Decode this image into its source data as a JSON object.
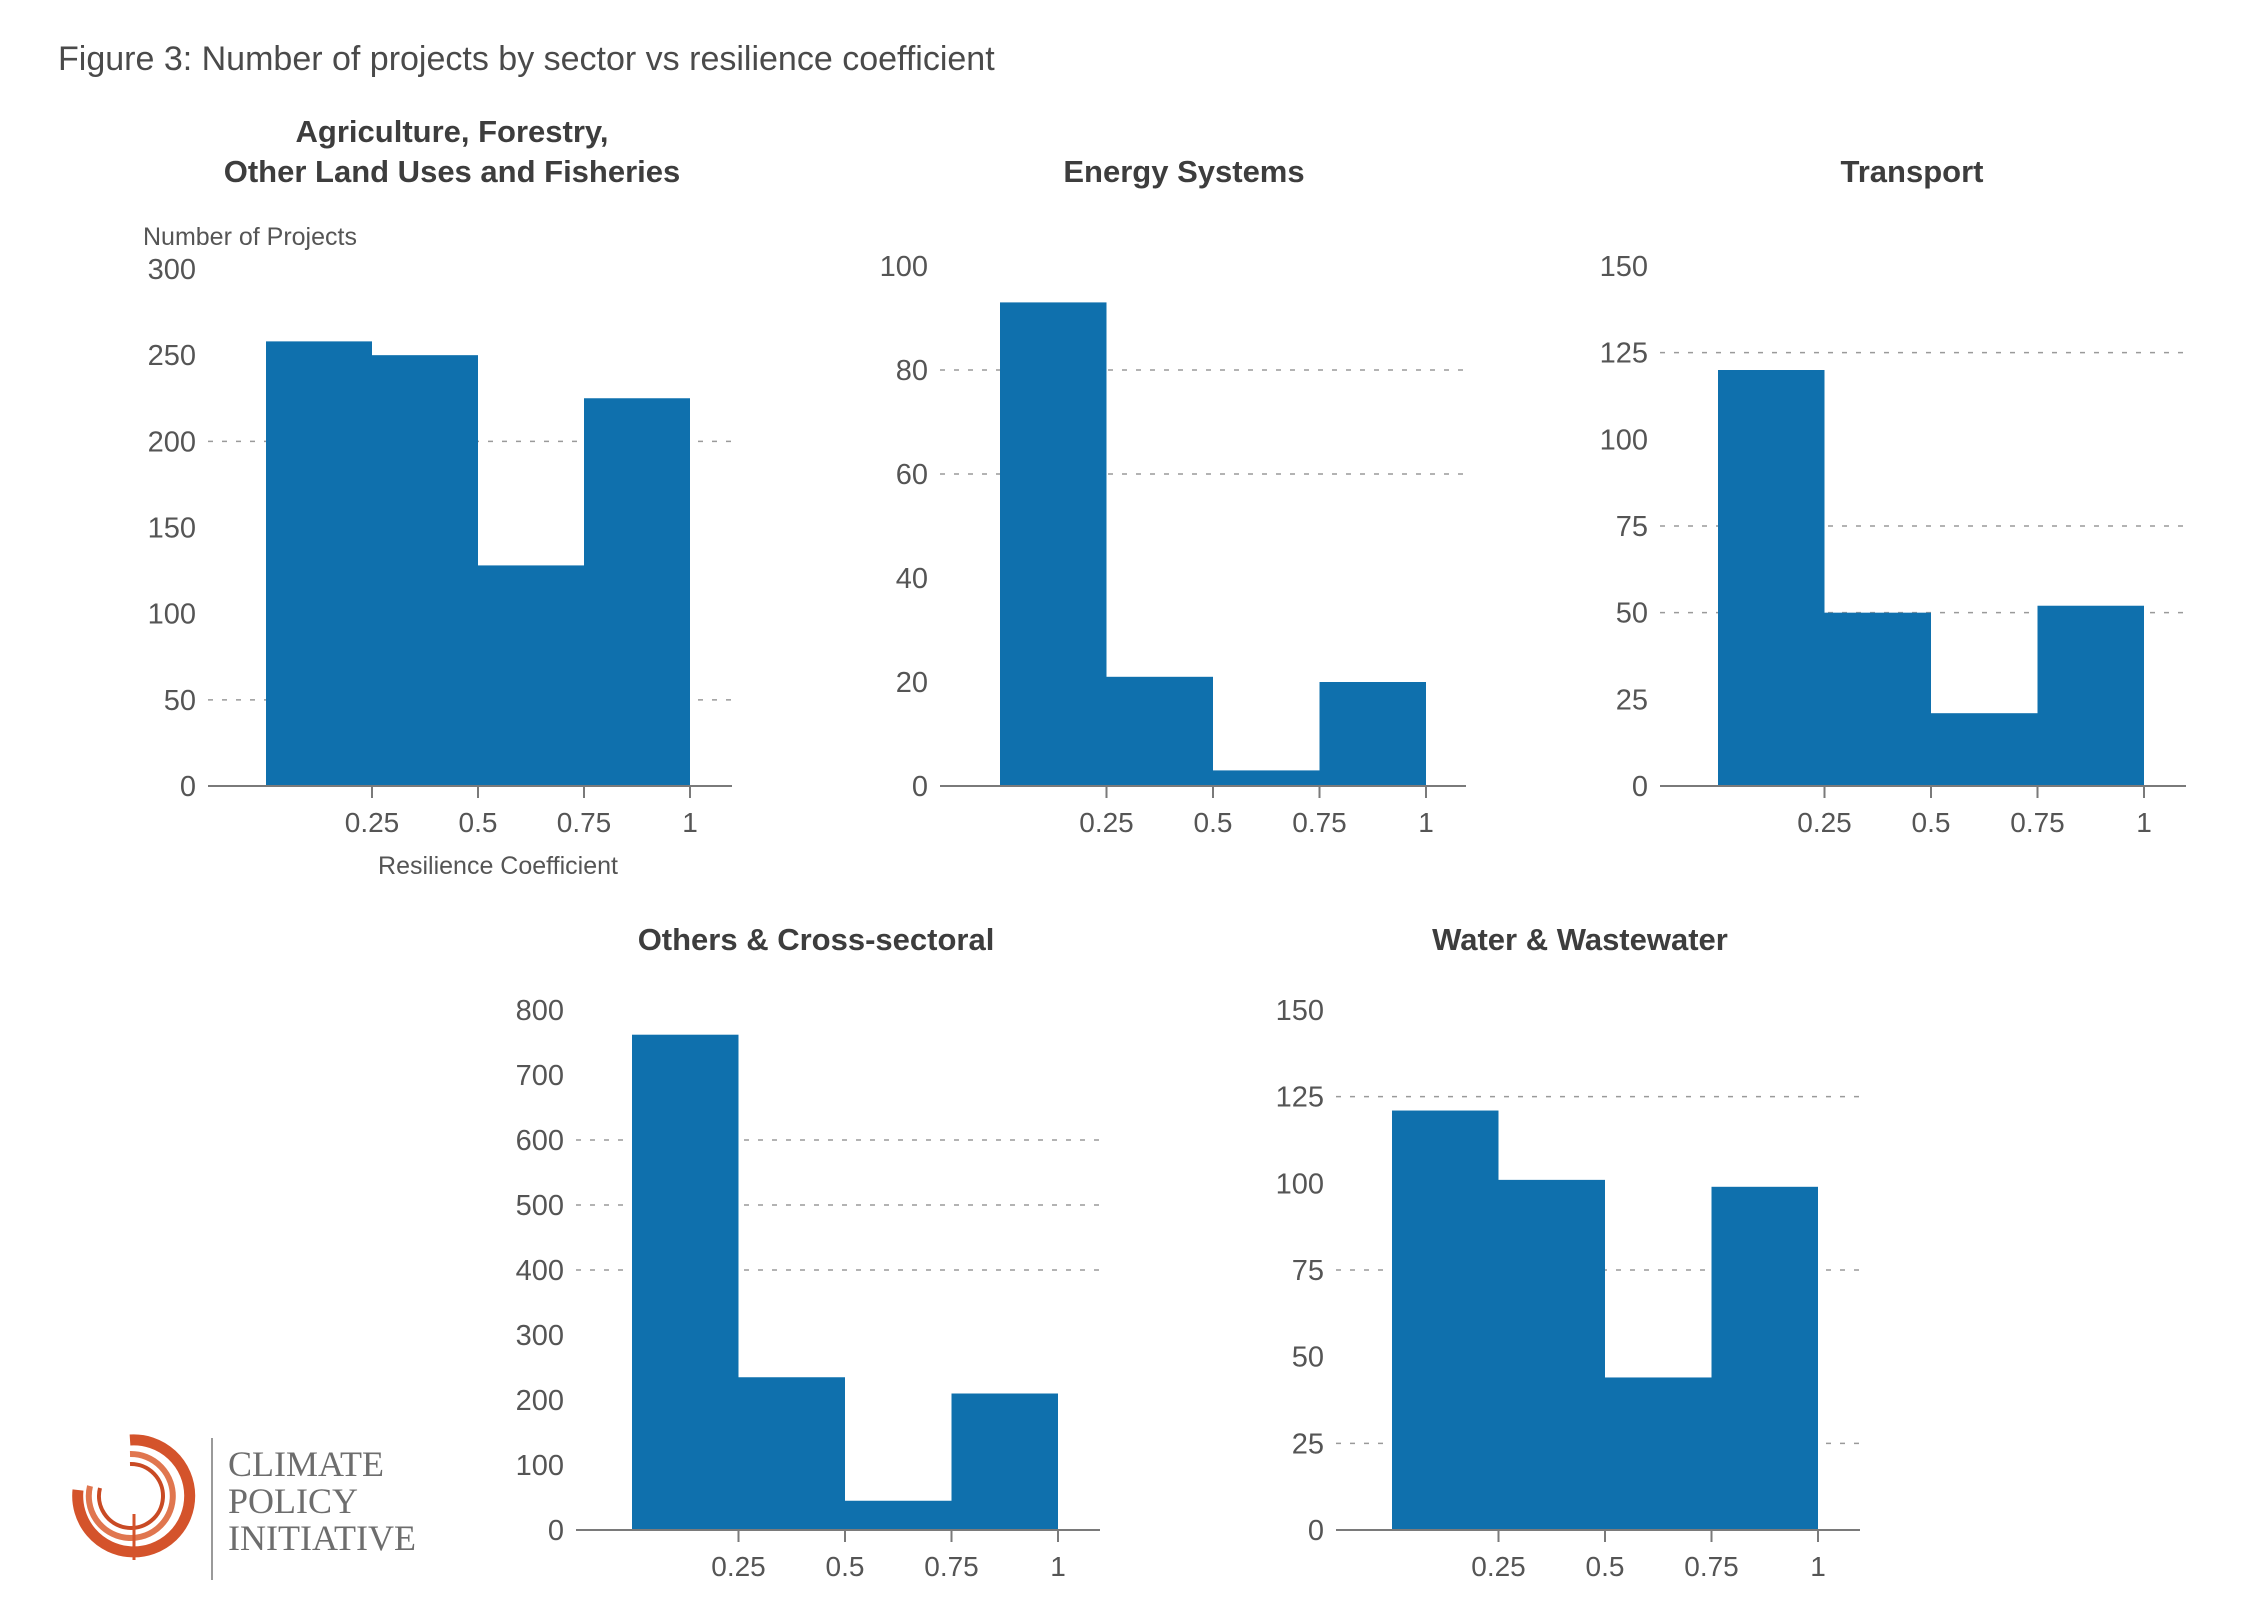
{
  "figure_title": "Figure 3: Number of projects by sector vs resilience coefficient",
  "logo": {
    "lines": [
      "CLIMATE",
      "POLICY",
      "INITIATIVE"
    ]
  },
  "colors": {
    "bar": "#0f70ad",
    "logo_ring": "#d4532b"
  },
  "chart_data": [
    {
      "type": "bar",
      "title": [
        "Agriculture, Forestry,",
        "Other Land Uses and Fisheries"
      ],
      "ylabel": "Number of Projects",
      "xlabel": "Resilience Coefficient",
      "bin_edges": [
        0,
        0.25,
        0.5,
        0.75,
        1
      ],
      "values": [
        258,
        250,
        128,
        225
      ],
      "ylim": [
        0,
        300
      ],
      "yticks": [
        0,
        50,
        100,
        150,
        200,
        250,
        300
      ],
      "ytick_labels": [
        "0",
        "50",
        "100",
        "150",
        "200",
        "250",
        "300"
      ],
      "gridlines": [
        50,
        200
      ],
      "xticks": [
        0.25,
        0.5,
        0.75,
        1
      ],
      "xtick_labels": [
        "0.25",
        "0.5",
        "0.75",
        "1"
      ]
    },
    {
      "type": "bar",
      "title": [
        "Energy Systems"
      ],
      "ylabel": "",
      "xlabel": "",
      "bin_edges": [
        0,
        0.25,
        0.5,
        0.75,
        1
      ],
      "values": [
        93,
        21,
        3,
        20
      ],
      "ylim": [
        0,
        100
      ],
      "yticks": [
        0,
        20,
        40,
        60,
        80,
        100
      ],
      "ytick_labels": [
        "0",
        "20",
        "40",
        "60",
        "80",
        "100"
      ],
      "gridlines": [
        60,
        80
      ],
      "xticks": [
        0.25,
        0.5,
        0.75,
        1
      ],
      "xtick_labels": [
        "0.25",
        "0.5",
        "0.75",
        "1"
      ]
    },
    {
      "type": "bar",
      "title": [
        "Transport"
      ],
      "ylabel": "",
      "xlabel": "",
      "bin_edges": [
        0,
        0.25,
        0.5,
        0.75,
        1
      ],
      "values": [
        120,
        50,
        21,
        52
      ],
      "ylim": [
        0,
        150
      ],
      "yticks": [
        0,
        25,
        50,
        75,
        100,
        125,
        150
      ],
      "ytick_labels": [
        "0",
        "25",
        "50",
        "75",
        "100",
        "125",
        "150"
      ],
      "gridlines": [
        50,
        75,
        125
      ],
      "xticks": [
        0.25,
        0.5,
        0.75,
        1
      ],
      "xtick_labels": [
        "0.25",
        "0.5",
        "0.75",
        "1"
      ]
    },
    {
      "type": "bar",
      "title": [
        "Others & Cross-sectoral"
      ],
      "ylabel": "",
      "xlabel": "",
      "bin_edges": [
        0,
        0.25,
        0.5,
        0.75,
        1
      ],
      "values": [
        762,
        235,
        45,
        210
      ],
      "ylim": [
        0,
        800
      ],
      "yticks": [
        0,
        100,
        200,
        300,
        400,
        500,
        600,
        700,
        800
      ],
      "ytick_labels": [
        "0",
        "100",
        "200",
        "300",
        "400",
        "500",
        "600",
        "700",
        "800"
      ],
      "gridlines": [
        400,
        500,
        600
      ],
      "xticks": [
        0.25,
        0.5,
        0.75,
        1
      ],
      "xtick_labels": [
        "0.25",
        "0.5",
        "0.75",
        "1"
      ]
    },
    {
      "type": "bar",
      "title": [
        "Water & Wastewater"
      ],
      "ylabel": "",
      "xlabel": "",
      "bin_edges": [
        0,
        0.25,
        0.5,
        0.75,
        1
      ],
      "values": [
        121,
        101,
        44,
        99
      ],
      "ylim": [
        0,
        150
      ],
      "yticks": [
        0,
        25,
        50,
        75,
        100,
        125,
        150
      ],
      "ytick_labels": [
        "0",
        "25",
        "50",
        "75",
        "100",
        "125",
        "150"
      ],
      "gridlines": [
        25,
        75,
        125
      ],
      "xticks": [
        0.25,
        0.5,
        0.75,
        1
      ],
      "xtick_labels": [
        "0.25",
        "0.5",
        "0.75",
        "1"
      ]
    }
  ]
}
